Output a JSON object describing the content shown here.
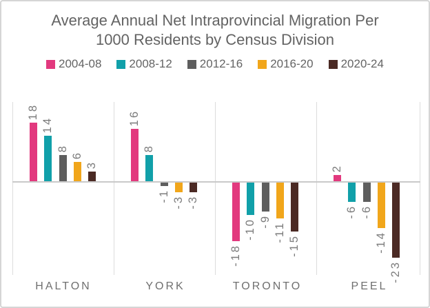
{
  "chart_data": {
    "type": "bar",
    "title": "Average Annual Net Intraprovincial Migration Per 1000 Residents by Census Division",
    "categories": [
      "HALTON",
      "YORK",
      "TORONTO",
      "PEEL"
    ],
    "series": [
      {
        "name": "2004-08",
        "color": "#E2397E",
        "values": [
          18,
          16,
          -18,
          2
        ]
      },
      {
        "name": "2008-12",
        "color": "#11A0A9",
        "values": [
          14,
          8,
          -10,
          -6
        ]
      },
      {
        "name": "2012-16",
        "color": "#5E5E5E",
        "values": [
          8,
          -1,
          -9,
          -6
        ]
      },
      {
        "name": "2016-20",
        "color": "#F1A61B",
        "values": [
          6,
          -3,
          -11,
          -14
        ]
      },
      {
        "name": "2020-24",
        "color": "#4B2A24",
        "values": [
          3,
          -3,
          -15,
          -23
        ]
      }
    ],
    "data_labels": true,
    "legend_position": "top",
    "ylim": [
      -28,
      25
    ],
    "grid": "vertical-panel-dividers-and-zero-line"
  },
  "colors": {
    "border": "#d5d5d5",
    "panel_divider": "#dcdcdc",
    "zero_line": "#c9c9c9",
    "title_text": "#636363",
    "legend_text": "#646464",
    "value_label_text": "#7b7b7b",
    "category_text": "#6f6f6f",
    "background": "#ffffff"
  }
}
